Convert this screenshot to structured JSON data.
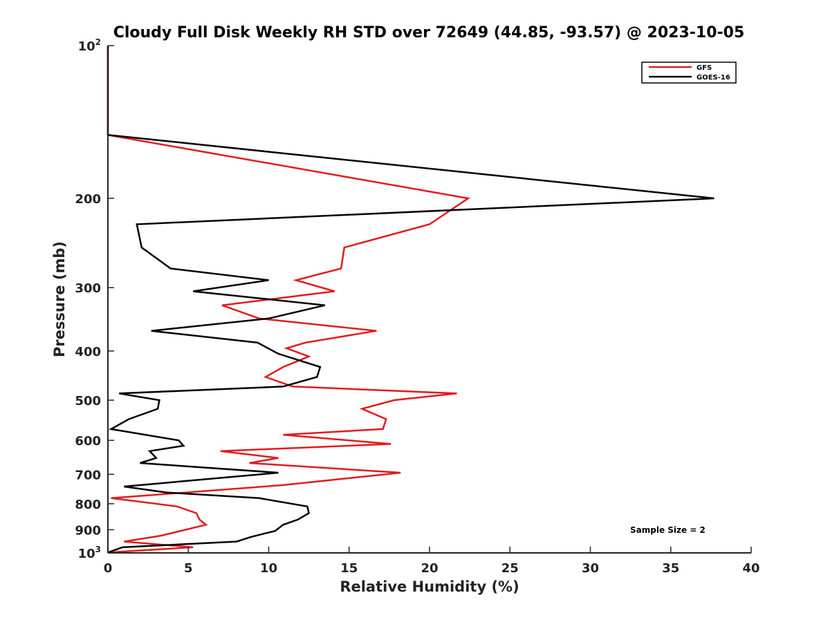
{
  "chart_data": {
    "type": "line",
    "title": "Cloudy Full Disk Weekly RH STD over 72649 (44.85, -93.57) @ 2023-10-05",
    "xlabel": "Relative Humidity (%)",
    "ylabel": "Pressure (mb)",
    "xlim": [
      0,
      40
    ],
    "ylim": [
      100,
      1000
    ],
    "y_scale": "log",
    "y_reversed": true,
    "x_ticks": [
      0,
      5,
      10,
      15,
      20,
      25,
      30,
      35,
      40
    ],
    "y_ticks": [
      {
        "value": 100,
        "label": "10",
        "sup": "2"
      },
      {
        "value": 200,
        "label": "200"
      },
      {
        "value": 300,
        "label": "300"
      },
      {
        "value": 400,
        "label": "400"
      },
      {
        "value": 500,
        "label": "500"
      },
      {
        "value": 600,
        "label": "600"
      },
      {
        "value": 700,
        "label": "700"
      },
      {
        "value": 800,
        "label": "800"
      },
      {
        "value": 900,
        "label": "900"
      },
      {
        "value": 1000,
        "label": "10",
        "sup": "3"
      }
    ],
    "grid": false,
    "legend_position": "top-right",
    "annotation": "Sample Size = 2",
    "series": [
      {
        "name": "GFS",
        "color": "#e31a1c",
        "points": [
          [
            0,
            100
          ],
          [
            0,
            150
          ],
          [
            22.4,
            200
          ],
          [
            20,
            225
          ],
          [
            14.7,
            250
          ],
          [
            14.5,
            275
          ],
          [
            11.7,
            290
          ],
          [
            14.1,
            305
          ],
          [
            7.1,
            325
          ],
          [
            9.4,
            345
          ],
          [
            16.7,
            365
          ],
          [
            12.3,
            385
          ],
          [
            11.1,
            395
          ],
          [
            12.5,
            410
          ],
          [
            10.9,
            430
          ],
          [
            9.8,
            450
          ],
          [
            11.5,
            470
          ],
          [
            21.7,
            485
          ],
          [
            17.8,
            500
          ],
          [
            15.8,
            520
          ],
          [
            17.3,
            545
          ],
          [
            17.1,
            570
          ],
          [
            10.9,
            585
          ],
          [
            17.6,
            610
          ],
          [
            7.0,
            630
          ],
          [
            10.6,
            650
          ],
          [
            8.8,
            665
          ],
          [
            18.2,
            695
          ],
          [
            10.9,
            735
          ],
          [
            0.2,
            780
          ],
          [
            4.3,
            810
          ],
          [
            5.5,
            835
          ],
          [
            5.7,
            860
          ],
          [
            6.1,
            880
          ],
          [
            3.3,
            925
          ],
          [
            1.0,
            950
          ],
          [
            5.3,
            975
          ],
          [
            0,
            998
          ]
        ]
      },
      {
        "name": "GOES-16",
        "color": "#000000",
        "points": [
          [
            0,
            100
          ],
          [
            0,
            150
          ],
          [
            37.7,
            200
          ],
          [
            1.8,
            225
          ],
          [
            2.1,
            250
          ],
          [
            3.9,
            275
          ],
          [
            10,
            290
          ],
          [
            5.3,
            305
          ],
          [
            13.5,
            325
          ],
          [
            10,
            345
          ],
          [
            2.7,
            365
          ],
          [
            9.3,
            385
          ],
          [
            10.6,
            405
          ],
          [
            13.2,
            430
          ],
          [
            13.0,
            450
          ],
          [
            10.9,
            470
          ],
          [
            0.7,
            485
          ],
          [
            3.2,
            500
          ],
          [
            3.1,
            520
          ],
          [
            1.3,
            545
          ],
          [
            0.2,
            570
          ],
          [
            4.4,
            600
          ],
          [
            4.7,
            615
          ],
          [
            2.6,
            630
          ],
          [
            3.0,
            650
          ],
          [
            2.0,
            665
          ],
          [
            10.6,
            695
          ],
          [
            1.0,
            740
          ],
          [
            3.6,
            760
          ],
          [
            9.4,
            780
          ],
          [
            12.4,
            810
          ],
          [
            12.5,
            835
          ],
          [
            11.8,
            860
          ],
          [
            10.9,
            880
          ],
          [
            10.4,
            905
          ],
          [
            8.9,
            930
          ],
          [
            8.0,
            950
          ],
          [
            0.9,
            975
          ],
          [
            0,
            998
          ]
        ]
      }
    ]
  }
}
